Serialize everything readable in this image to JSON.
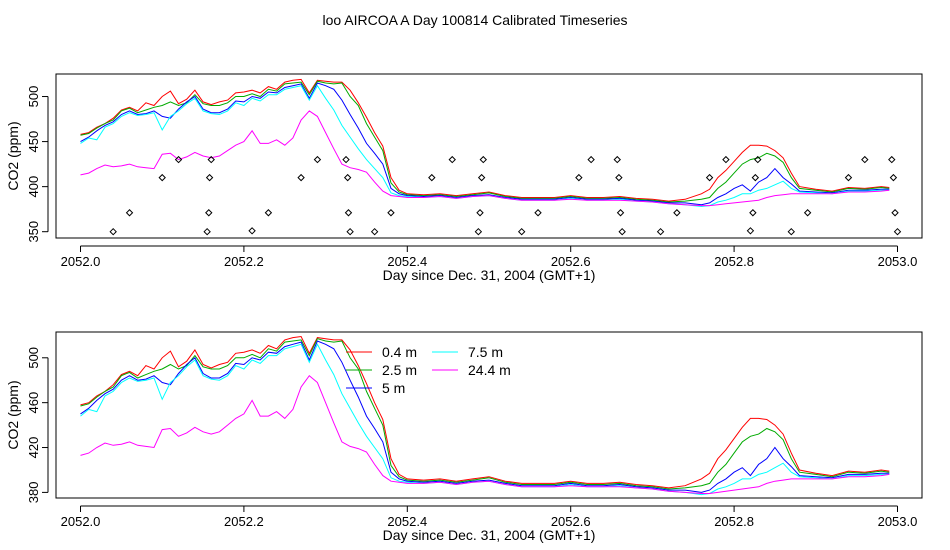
{
  "title": "loo AIRCOA A  Day 100814  Calibrated Timeseries",
  "colors": {
    "0.4 m": "#ff0000",
    "2.5 m": "#00aa00",
    "5 m": "#0000ff",
    "7.5 m": "#00ffff",
    "24.4 m": "#ff00ff",
    "points": "#000000"
  },
  "chart_data": [
    {
      "type": "scatter",
      "xlabel": "Day since Dec. 31, 2004 (GMT+1)",
      "ylabel": "CO2 (ppm)",
      "xlim": [
        2051.97,
        2053.03
      ],
      "ylim": [
        343,
        525
      ],
      "xticks": [
        "2052.0",
        "2052.2",
        "2052.4",
        "2052.6",
        "2052.8",
        "2053.0"
      ],
      "yticks": [
        "350",
        "400",
        "450",
        "500"
      ],
      "series_ref": "chart_data.1.series",
      "points": [
        [
          2052.04,
          350
        ],
        [
          2052.06,
          371
        ],
        [
          2052.1,
          410
        ],
        [
          2052.12,
          430
        ],
        [
          2052.155,
          350
        ],
        [
          2052.157,
          371
        ],
        [
          2052.158,
          410
        ],
        [
          2052.16,
          430
        ],
        [
          2052.21,
          351
        ],
        [
          2052.23,
          371
        ],
        [
          2052.27,
          410
        ],
        [
          2052.29,
          430
        ],
        [
          2052.325,
          430
        ],
        [
          2052.327,
          410
        ],
        [
          2052.328,
          371
        ],
        [
          2052.33,
          350
        ],
        [
          2052.36,
          350
        ],
        [
          2052.38,
          371
        ],
        [
          2052.43,
          410
        ],
        [
          2052.455,
          430
        ],
        [
          2052.487,
          350
        ],
        [
          2052.489,
          371
        ],
        [
          2052.491,
          410
        ],
        [
          2052.493,
          430
        ],
        [
          2052.54,
          350
        ],
        [
          2052.56,
          371
        ],
        [
          2052.61,
          410
        ],
        [
          2052.625,
          430
        ],
        [
          2052.657,
          430
        ],
        [
          2052.659,
          410
        ],
        [
          2052.661,
          371
        ],
        [
          2052.663,
          350
        ],
        [
          2052.71,
          350
        ],
        [
          2052.73,
          371
        ],
        [
          2052.77,
          410
        ],
        [
          2052.79,
          430
        ],
        [
          2052.82,
          351
        ],
        [
          2052.823,
          371
        ],
        [
          2052.826,
          410
        ],
        [
          2052.829,
          430
        ],
        [
          2052.87,
          350
        ],
        [
          2052.89,
          371
        ],
        [
          2052.94,
          410
        ],
        [
          2052.96,
          430
        ],
        [
          2052.993,
          430
        ],
        [
          2052.995,
          410
        ],
        [
          2052.997,
          371
        ],
        [
          2053.0,
          350
        ]
      ]
    },
    {
      "type": "line",
      "xlabel": "Day since Dec. 31, 2004 (GMT+1)",
      "ylabel": "CO2 (ppm)",
      "xlim": [
        2051.97,
        2053.03
      ],
      "ylim": [
        375,
        523
      ],
      "xticks": [
        "2052.0",
        "2052.2",
        "2052.4",
        "2052.6",
        "2052.8",
        "2053.0"
      ],
      "yticks": [
        "380",
        "420",
        "460",
        "500"
      ],
      "legend": "top-left",
      "x": [
        2052.0,
        2052.01,
        2052.02,
        2052.03,
        2052.04,
        2052.05,
        2052.06,
        2052.07,
        2052.08,
        2052.09,
        2052.1,
        2052.11,
        2052.12,
        2052.13,
        2052.14,
        2052.15,
        2052.16,
        2052.17,
        2052.18,
        2052.19,
        2052.2,
        2052.21,
        2052.22,
        2052.23,
        2052.24,
        2052.25,
        2052.26,
        2052.27,
        2052.28,
        2052.29,
        2052.3,
        2052.31,
        2052.32,
        2052.33,
        2052.34,
        2052.35,
        2052.36,
        2052.37,
        2052.38,
        2052.39,
        2052.4,
        2052.42,
        2052.44,
        2052.46,
        2052.48,
        2052.5,
        2052.52,
        2052.54,
        2052.56,
        2052.58,
        2052.6,
        2052.62,
        2052.64,
        2052.66,
        2052.68,
        2052.7,
        2052.72,
        2052.74,
        2052.76,
        2052.77,
        2052.78,
        2052.79,
        2052.8,
        2052.81,
        2052.82,
        2052.83,
        2052.84,
        2052.85,
        2052.86,
        2052.87,
        2052.88,
        2052.9,
        2052.92,
        2052.94,
        2052.96,
        2052.98,
        2052.99
      ],
      "series": [
        {
          "name": "0.4 m",
          "values": [
            458,
            460,
            466,
            470,
            476,
            485,
            488,
            484,
            493,
            490,
            500,
            506,
            492,
            497,
            507,
            494,
            491,
            494,
            496,
            504,
            505,
            507,
            504,
            511,
            508,
            516,
            518,
            519,
            504,
            518,
            517,
            516,
            516,
            507,
            493,
            477,
            460,
            445,
            410,
            396,
            392,
            391,
            392,
            390,
            392,
            394,
            390,
            388,
            388,
            388,
            390,
            388,
            388,
            389,
            387,
            386,
            384,
            386,
            392,
            397,
            410,
            418,
            428,
            438,
            446,
            446,
            445,
            440,
            432,
            415,
            400,
            397,
            395,
            399,
            398,
            400,
            399
          ]
        },
        {
          "name": "2.5 m",
          "values": [
            457,
            459,
            465,
            470,
            474,
            484,
            487,
            482,
            485,
            488,
            490,
            494,
            490,
            493,
            502,
            492,
            490,
            490,
            493,
            500,
            500,
            503,
            500,
            508,
            506,
            514,
            515,
            516,
            502,
            517,
            515,
            514,
            515,
            500,
            490,
            470,
            455,
            440,
            404,
            394,
            391,
            390,
            391,
            389,
            391,
            393,
            389,
            387,
            387,
            387,
            389,
            387,
            387,
            388,
            386,
            385,
            383,
            384,
            386,
            388,
            398,
            405,
            415,
            425,
            430,
            432,
            437,
            434,
            427,
            410,
            398,
            396,
            394,
            398,
            397,
            399,
            398
          ]
        },
        {
          "name": "5 m",
          "values": [
            450,
            455,
            462,
            468,
            472,
            480,
            484,
            480,
            481,
            484,
            478,
            476,
            486,
            494,
            500,
            486,
            482,
            482,
            486,
            495,
            494,
            500,
            498,
            505,
            504,
            510,
            512,
            514,
            498,
            515,
            512,
            508,
            496,
            480,
            465,
            448,
            437,
            425,
            398,
            392,
            390,
            389,
            390,
            388,
            390,
            391,
            388,
            386,
            386,
            386,
            388,
            386,
            386,
            387,
            385,
            384,
            382,
            382,
            380,
            382,
            388,
            392,
            398,
            402,
            395,
            405,
            410,
            420,
            410,
            403,
            395,
            394,
            393,
            396,
            396,
            397,
            397
          ]
        },
        {
          "name": "7.5 m",
          "values": [
            448,
            454,
            452,
            466,
            470,
            478,
            482,
            479,
            480,
            482,
            463,
            478,
            484,
            492,
            498,
            484,
            481,
            480,
            484,
            493,
            490,
            498,
            495,
            502,
            502,
            508,
            510,
            512,
            496,
            512,
            498,
            485,
            468,
            455,
            442,
            430,
            420,
            410,
            393,
            390,
            389,
            388,
            389,
            387,
            389,
            390,
            387,
            385,
            385,
            385,
            387,
            385,
            385,
            386,
            384,
            383,
            381,
            380,
            378,
            379,
            383,
            385,
            388,
            392,
            392,
            396,
            398,
            402,
            406,
            398,
            394,
            393,
            392,
            395,
            395,
            396,
            396
          ]
        },
        {
          "name": "24.4 m",
          "values": [
            413,
            415,
            420,
            424,
            422,
            423,
            425,
            422,
            421,
            420,
            436,
            437,
            430,
            433,
            438,
            434,
            432,
            434,
            440,
            446,
            450,
            462,
            448,
            448,
            452,
            446,
            454,
            474,
            484,
            478,
            460,
            442,
            425,
            421,
            419,
            416,
            405,
            395,
            390,
            389,
            388,
            388,
            389,
            387,
            389,
            390,
            387,
            385,
            385,
            385,
            386,
            385,
            385,
            385,
            384,
            383,
            381,
            380,
            379,
            379,
            380,
            381,
            382,
            383,
            384,
            385,
            388,
            390,
            391,
            392,
            392,
            392,
            392,
            394,
            394,
            395,
            396
          ]
        }
      ]
    }
  ]
}
